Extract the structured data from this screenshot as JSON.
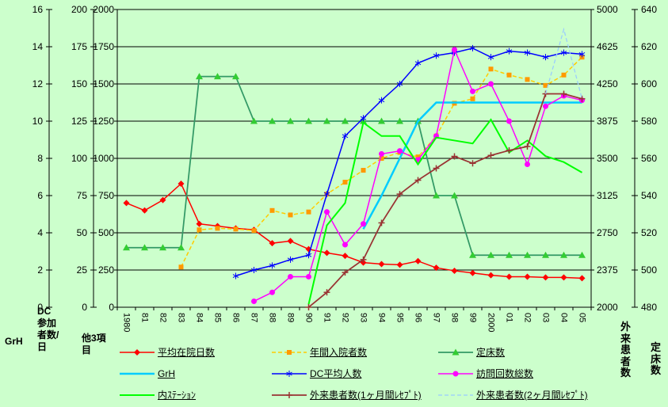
{
  "background": "#CCFFCC",
  "chart_data": {
    "type": "line",
    "title": "",
    "legend_position": "bottom",
    "grid": "horizontal",
    "gridline_color": "#000000",
    "categories": [
      "1980",
      "81",
      "82",
      "83",
      "84",
      "85",
      "86",
      "87",
      "88",
      "89",
      "90",
      "91",
      "92",
      "93",
      "94",
      "95",
      "96",
      "97",
      "98",
      "99",
      "2000",
      "01",
      "02",
      "03",
      "04",
      "05"
    ],
    "axes": {
      "grh": {
        "label": "GrH",
        "min": 0,
        "max": 16,
        "ticks": [
          0,
          2,
          4,
          6,
          8,
          10,
          12,
          14,
          16
        ]
      },
      "dc": {
        "label": "DC参加者数/日",
        "min": 0,
        "max": 200,
        "ticks": [
          0,
          25,
          50,
          75,
          100,
          125,
          150,
          175,
          200
        ]
      },
      "other3": {
        "label": "他3項目",
        "min": 0,
        "max": 2000,
        "ticks": [
          0,
          250,
          500,
          750,
          1000,
          1250,
          1500,
          1750,
          2000
        ]
      },
      "outpatient": {
        "label": "外来患者数",
        "min": 2000,
        "max": 5000,
        "ticks": [
          2000,
          2375,
          2750,
          3125,
          3500,
          3875,
          4250,
          4625,
          5000
        ]
      },
      "beds": {
        "label": "定床数",
        "min": 480,
        "max": 640,
        "ticks": [
          480,
          500,
          520,
          540,
          560,
          580,
          600,
          620,
          640
        ]
      }
    },
    "series": [
      {
        "name": "平均在院日数",
        "slug": "avg-stay",
        "axis": "other3",
        "color": "#FF0000",
        "marker": "diamond",
        "width": 1.5,
        "dashed": false,
        "values": [
          700,
          650,
          720,
          830,
          560,
          545,
          530,
          520,
          430,
          445,
          390,
          365,
          345,
          300,
          290,
          285,
          310,
          265,
          245,
          230,
          215,
          205,
          205,
          200,
          200,
          195
        ]
      },
      {
        "name": "年間入院者数",
        "slug": "admissions",
        "axis": "other3",
        "color": "#FFCC00",
        "marker_color": "#FF9900",
        "marker": "square",
        "width": 1.5,
        "dashed": true,
        "values": [
          null,
          null,
          null,
          270,
          520,
          530,
          525,
          515,
          650,
          620,
          640,
          760,
          840,
          920,
          1000,
          1040,
          1010,
          1150,
          1370,
          1400,
          1600,
          1560,
          1530,
          1490,
          1560,
          1680
        ]
      },
      {
        "name": "定床数",
        "slug": "beds",
        "axis": "beds",
        "color": "#339966",
        "marker_color": "#33CC33",
        "marker": "triangle",
        "width": 1.75,
        "dashed": false,
        "values": [
          512,
          512,
          512,
          512,
          604,
          604,
          604,
          580,
          580,
          580,
          580,
          580,
          580,
          580,
          580,
          580,
          580,
          540,
          540,
          508,
          508,
          508,
          508,
          508,
          508,
          508
        ]
      },
      {
        "name": "GrH",
        "slug": "grh",
        "axis": "grh",
        "color": "#00CCFF",
        "marker": "none",
        "width": 2.5,
        "dashed": false,
        "values": [
          null,
          null,
          null,
          null,
          null,
          null,
          null,
          null,
          null,
          null,
          null,
          null,
          null,
          4.2,
          6,
          8,
          10,
          11,
          11,
          11,
          11,
          11,
          11,
          11,
          11,
          11
        ]
      },
      {
        "name": "DC平均人数",
        "slug": "dc-average",
        "axis": "dc",
        "color": "#0000FF",
        "marker": "asterisk",
        "width": 1.5,
        "dashed": false,
        "values": [
          null,
          null,
          null,
          null,
          null,
          null,
          21,
          25,
          28,
          32,
          35,
          76,
          115,
          127,
          139,
          150,
          164,
          169,
          171,
          174,
          168,
          172,
          171,
          168,
          171,
          170
        ]
      },
      {
        "name": "訪問回数総数",
        "slug": "visits",
        "axis": "other3",
        "color": "#FF00FF",
        "marker": "circle",
        "width": 1.5,
        "dashed": false,
        "values": [
          null,
          null,
          null,
          null,
          null,
          null,
          null,
          40,
          100,
          205,
          205,
          640,
          420,
          560,
          1030,
          1050,
          990,
          1150,
          1730,
          1450,
          1500,
          1250,
          960,
          1350,
          1420,
          1390
        ]
      },
      {
        "name": "内ｽﾃｰｼｮﾝ",
        "slug": "station",
        "axis": "other3",
        "color": "#00FF00",
        "marker": "none",
        "width": 2,
        "dashed": false,
        "values": [
          null,
          null,
          null,
          null,
          null,
          null,
          null,
          null,
          null,
          null,
          20,
          550,
          700,
          1240,
          1150,
          1150,
          960,
          1140,
          1120,
          1100,
          1260,
          1040,
          1120,
          1015,
          975,
          905
        ]
      },
      {
        "name": "外来患者数(1ヶ月間ﾚｾﾌﾟﾄ)",
        "slug": "outpatient-1mo",
        "axis": "outpatient",
        "color": "#993333",
        "marker": "plus",
        "width": 1.75,
        "dashed": false,
        "values": [
          null,
          null,
          null,
          null,
          null,
          null,
          null,
          null,
          null,
          null,
          2000,
          2150,
          2350,
          2480,
          2850,
          3140,
          3280,
          3400,
          3520,
          3450,
          3530,
          3580,
          3620,
          4150,
          4150,
          4100
        ]
      },
      {
        "name": "外来患者数(2ヶ月間ﾚｾﾌﾟﾄ)",
        "slug": "outpatient-2mo",
        "axis": "outpatient",
        "color": "#99CCFF",
        "marker": "none",
        "width": 1.25,
        "dashed": true,
        "values": [
          null,
          null,
          null,
          null,
          null,
          null,
          null,
          null,
          null,
          null,
          null,
          null,
          null,
          null,
          null,
          null,
          null,
          null,
          null,
          null,
          null,
          null,
          null,
          4150,
          4800,
          4100
        ]
      }
    ]
  }
}
